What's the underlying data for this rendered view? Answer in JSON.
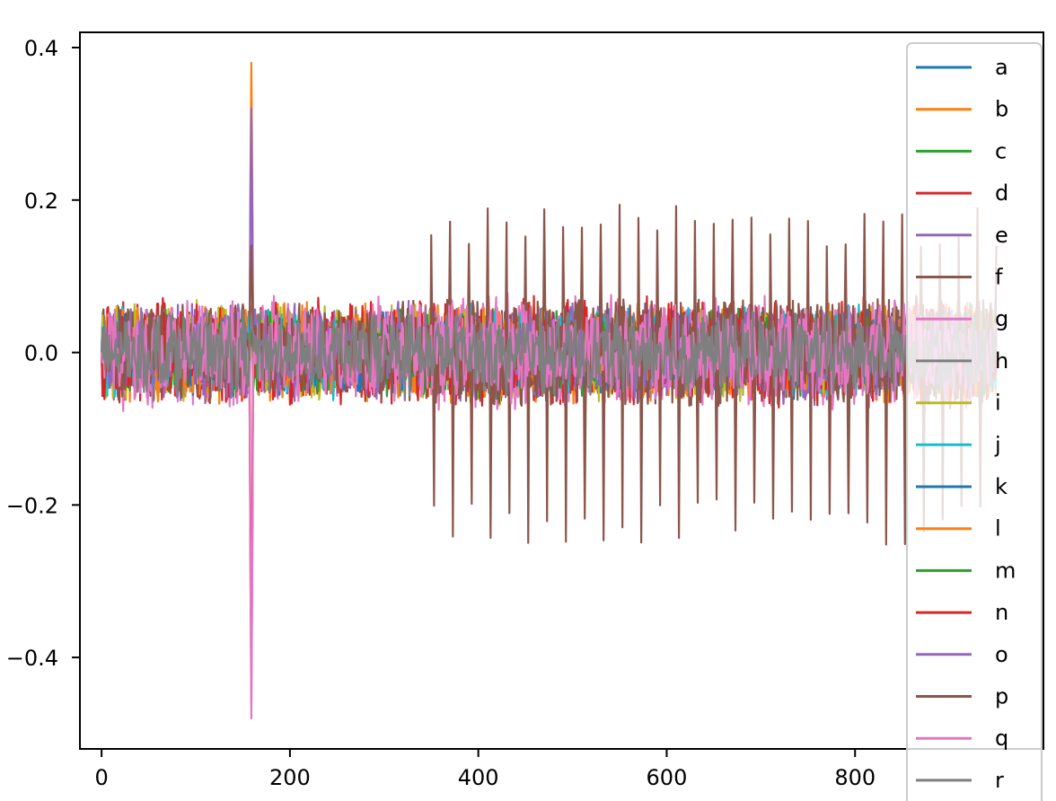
{
  "chart_data": {
    "type": "line",
    "title": "",
    "xlabel": "",
    "ylabel": "",
    "xlim": [
      -23,
      1000
    ],
    "ylim": [
      -0.52,
      0.42
    ],
    "x_ticks": [
      0,
      200,
      400,
      600,
      800
    ],
    "y_ticks": [
      0.4,
      0.2,
      0.0,
      -0.2,
      -0.4
    ],
    "x_tick_labels": [
      "0",
      "200",
      "400",
      "600",
      "800"
    ],
    "y_tick_labels": [
      "0.4",
      "0.2",
      "0.0",
      "−0.2",
      "−0.4"
    ],
    "grid": false,
    "legend_position": "right",
    "x_range": [
      0,
      950
    ],
    "series": [
      {
        "name": "a",
        "color": "#1f77b4",
        "amp": 0.042,
        "peak_at_160": 0.05
      },
      {
        "name": "b",
        "color": "#ff7f0e",
        "amp": 0.05,
        "peak_at_160": 0.38
      },
      {
        "name": "c",
        "color": "#2ca02c",
        "amp": 0.04,
        "peak_at_160": 0.04
      },
      {
        "name": "d",
        "color": "#d62728",
        "amp": 0.055,
        "peak_at_160": -0.42
      },
      {
        "name": "e",
        "color": "#9467bd",
        "amp": 0.05,
        "peak_at_160": 0.32
      },
      {
        "name": "f",
        "color": "#8c564b",
        "amp": 0.045,
        "peak_at_160": 0.14
      },
      {
        "name": "g",
        "color": "#e377c2",
        "amp": 0.06,
        "peak_at_160": -0.48
      },
      {
        "name": "h",
        "color": "#7f7f7f",
        "amp": 0.04,
        "peak_at_160": 0.05
      },
      {
        "name": "i",
        "color": "#bcbd22",
        "amp": 0.05,
        "peak_at_160": 0.06
      },
      {
        "name": "j",
        "color": "#17becf",
        "amp": 0.045,
        "peak_at_160": 0.05
      },
      {
        "name": "k",
        "color": "#1f77b4",
        "amp": 0.04,
        "peak_at_160": 0.05
      },
      {
        "name": "l",
        "color": "#ff7f0e",
        "amp": 0.05,
        "peak_at_160": 0.06
      },
      {
        "name": "m",
        "color": "#2ca02c",
        "amp": 0.04,
        "peak_at_160": 0.04
      },
      {
        "name": "n",
        "color": "#d62728",
        "amp": 0.055,
        "peak_at_160": -0.4
      },
      {
        "name": "o",
        "color": "#9467bd",
        "amp": 0.05,
        "peak_at_160": 0.3
      },
      {
        "name": "p",
        "color": "#8c564b",
        "amp": 0.05,
        "peak_at_160": 0.14,
        "spiky_after": 350,
        "spike_period": 20,
        "spike_up": 0.17,
        "spike_down": -0.22
      },
      {
        "name": "q",
        "color": "#e377c2",
        "amp": 0.05,
        "peak_at_160": -0.46
      },
      {
        "name": "r",
        "color": "#7f7f7f",
        "amp": 0.04,
        "peak_at_160": 0.05
      }
    ]
  }
}
